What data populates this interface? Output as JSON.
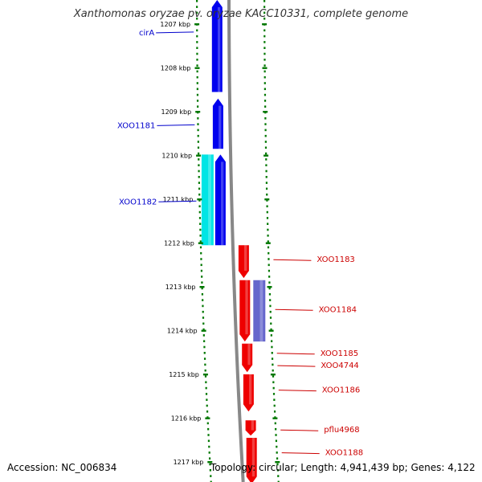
{
  "title": "Xanthomonas oryzae pv. oryzae KACC10331, complete genome",
  "accession": "Accession: NC_006834",
  "topology": "Topology: circular; Length: 4,941,439 bp; Genes: 4,122",
  "colors": {
    "reverse_strand": "#0000ee",
    "reverse_strand_alt": "#00e5e5",
    "forward_strand": "#ee0000",
    "forward_strand_alt": "#6666cc",
    "backbone": "#888888",
    "tick": "#007700",
    "reverse_label": "#0000cc",
    "forward_label": "#cc0000"
  },
  "ticks": [
    {
      "label": "1207 kbp",
      "kbp": 1207
    },
    {
      "label": "1208 kbp",
      "kbp": 1208
    },
    {
      "label": "1209 kbp",
      "kbp": 1209
    },
    {
      "label": "1210 kbp",
      "kbp": 1210
    },
    {
      "label": "1211 kbp",
      "kbp": 1211
    },
    {
      "label": "1212 kbp",
      "kbp": 1212
    },
    {
      "label": "1213 kbp",
      "kbp": 1213
    },
    {
      "label": "1214 kbp",
      "kbp": 1214
    },
    {
      "label": "1215 kbp",
      "kbp": 1215
    },
    {
      "label": "1216 kbp",
      "kbp": 1216
    },
    {
      "label": "1217 kbp",
      "kbp": 1217
    }
  ],
  "genes": [
    {
      "start": 1206.45,
      "end": 1208.55,
      "strand": "reverse",
      "lane": 0,
      "color": "reverse_strand"
    },
    {
      "start": 1208.7,
      "end": 1209.85,
      "strand": "reverse",
      "lane": 0,
      "color": "reverse_strand"
    },
    {
      "start": 1209.98,
      "end": 1212.05,
      "strand": "reverse",
      "lane": 0,
      "color": "reverse_strand"
    },
    {
      "start": 1209.98,
      "end": 1212.05,
      "strand": "reverse",
      "lane": 1,
      "color": "reverse_strand_alt"
    },
    {
      "start": 1212.05,
      "end": 1212.8,
      "strand": "forward",
      "lane": 0,
      "color": "forward_strand"
    },
    {
      "start": 1212.85,
      "end": 1214.25,
      "strand": "forward",
      "lane": 0,
      "color": "forward_strand"
    },
    {
      "start": 1212.85,
      "end": 1214.25,
      "strand": "forward",
      "lane": 1,
      "color": "forward_strand_alt"
    },
    {
      "start": 1214.3,
      "end": 1214.95,
      "strand": "forward",
      "lane": 0,
      "color": "forward_strand"
    },
    {
      "start": 1215.0,
      "end": 1215.85,
      "strand": "forward",
      "lane": 0,
      "color": "forward_strand"
    },
    {
      "start": 1216.05,
      "end": 1216.4,
      "strand": "forward",
      "lane": 0,
      "color": "forward_strand"
    },
    {
      "start": 1216.45,
      "end": 1217.5,
      "strand": "forward",
      "lane": 0,
      "color": "forward_strand"
    }
  ],
  "labels": [
    {
      "text": "cirA",
      "side": "left",
      "kbp": 1207.2
    },
    {
      "text": "XOO1181",
      "side": "left",
      "kbp": 1209.32
    },
    {
      "text": "XOO1182",
      "side": "left",
      "kbp": 1211.06
    },
    {
      "text": "XOO1183",
      "side": "right",
      "kbp": 1212.38
    },
    {
      "text": "XOO1184",
      "side": "right",
      "kbp": 1213.52
    },
    {
      "text": "XOO1185",
      "side": "right",
      "kbp": 1214.52
    },
    {
      "text": "XOO4744",
      "side": "right",
      "kbp": 1214.8
    },
    {
      "text": "XOO1186",
      "side": "right",
      "kbp": 1215.36
    },
    {
      "text": "pflu4968",
      "side": "right",
      "kbp": 1216.27
    },
    {
      "text": "XOO1188",
      "side": "right",
      "kbp": 1216.79
    }
  ]
}
